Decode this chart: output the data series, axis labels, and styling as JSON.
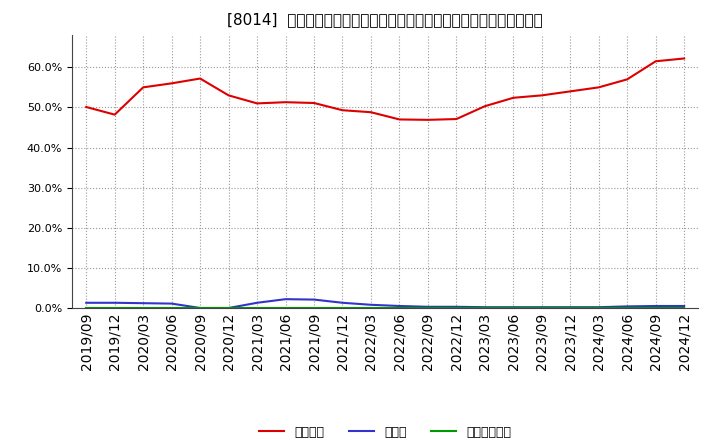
{
  "title": "[8014]  自己資本、のれん、繰延税金資産の総資産に対する比率の推移",
  "x_labels": [
    "2019/09",
    "2019/12",
    "2020/03",
    "2020/06",
    "2020/09",
    "2020/12",
    "2021/03",
    "2021/06",
    "2021/09",
    "2021/12",
    "2022/03",
    "2022/06",
    "2022/09",
    "2022/12",
    "2023/03",
    "2023/06",
    "2023/09",
    "2023/12",
    "2024/03",
    "2024/06",
    "2024/09",
    "2024/12"
  ],
  "equity": [
    0.501,
    0.482,
    0.55,
    0.56,
    0.572,
    0.53,
    0.51,
    0.513,
    0.511,
    0.493,
    0.488,
    0.47,
    0.469,
    0.471,
    0.503,
    0.524,
    0.53,
    0.54,
    0.55,
    0.57,
    0.615,
    0.622
  ],
  "goodwill": [
    0.013,
    0.013,
    0.012,
    0.011,
    0.0,
    0.0,
    0.013,
    0.022,
    0.021,
    0.013,
    0.008,
    0.005,
    0.003,
    0.003,
    0.002,
    0.002,
    0.002,
    0.002,
    0.002,
    0.004,
    0.005,
    0.005
  ],
  "deferred_tax": [
    0.001,
    0.001,
    0.001,
    0.001,
    0.001,
    0.001,
    0.001,
    0.001,
    0.001,
    0.001,
    0.001,
    0.001,
    0.001,
    0.001,
    0.001,
    0.001,
    0.001,
    0.001,
    0.001,
    0.001,
    0.001,
    0.001
  ],
  "equity_color": "#dd0000",
  "goodwill_color": "#3333cc",
  "deferred_tax_color": "#009900",
  "bg_color": "#ffffff",
  "plot_bg_color": "#ffffff",
  "grid_color": "#999999",
  "legend_equity": "自己資本",
  "legend_goodwill": "のれん",
  "legend_deferred": "繰延税金資産",
  "ylim": [
    0.0,
    0.68
  ],
  "yticks": [
    0.0,
    0.1,
    0.2,
    0.3,
    0.4,
    0.5,
    0.6
  ]
}
